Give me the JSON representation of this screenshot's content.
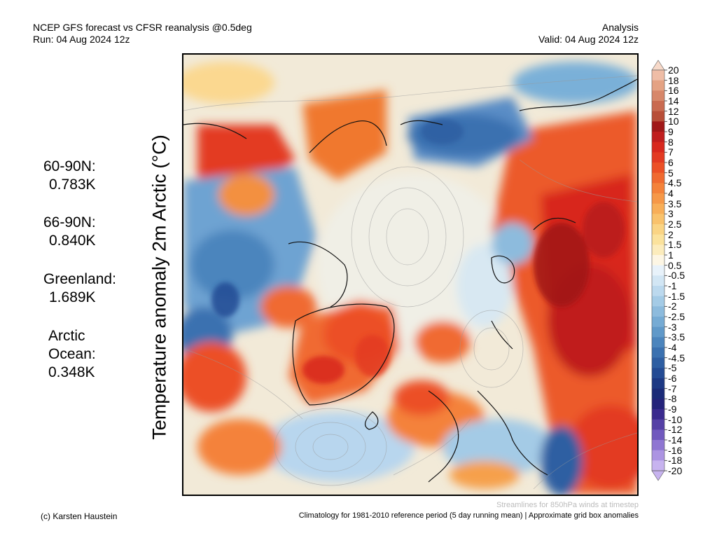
{
  "header": {
    "title": "NCEP GFS forecast vs CFSR reanalysis @0.5deg",
    "run": "Run: 04 Aug 2024 12z",
    "mode": "Analysis",
    "valid": "Valid: 04 Aug 2024 12z"
  },
  "stats": [
    {
      "label": "60-90N:",
      "value": "0.783K"
    },
    {
      "label": "66-90N:",
      "value": "0.840K"
    },
    {
      "label": "Greenland:",
      "value": "1.689K"
    },
    {
      "label": "Arctic Ocean:",
      "value": "0.348K"
    }
  ],
  "map": {
    "ylabel": "Temperature anomaly 2m Arctic (°C)",
    "streamlines_note": "Streamlines for 850hPa winds at timestep"
  },
  "colorbar": {
    "labels": [
      "20",
      "18",
      "16",
      "14",
      "12",
      "10",
      "9",
      "8",
      "7",
      "6",
      "5",
      "4.5",
      "4",
      "3.5",
      "3",
      "2.5",
      "2",
      "1.5",
      "1",
      "0.5",
      "-0.5",
      "-1",
      "-1.5",
      "-2",
      "-2.5",
      "-3",
      "-3.5",
      "-4",
      "-4.5",
      "-5",
      "-6",
      "-7",
      "-8",
      "-9",
      "-10",
      "-12",
      "-14",
      "-16",
      "-18",
      "-20"
    ],
    "colors": [
      "#f7d9c9",
      "#efbda6",
      "#e4a283",
      "#d7876a",
      "#c96a50",
      "#b84e38",
      "#a01818",
      "#c01e1e",
      "#d8281e",
      "#e33a22",
      "#ec5026",
      "#f06a30",
      "#f4823a",
      "#f69848",
      "#f8ae58",
      "#f9c26c",
      "#fad484",
      "#fbe29c",
      "#fcecbc",
      "#fdf6e4",
      "#e8f2fa",
      "#d2e6f4",
      "#bcd9ee",
      "#a4cbe6",
      "#8dbbdd",
      "#76abd4",
      "#6099c9",
      "#4c85bd",
      "#3b71b0",
      "#2e5ea2",
      "#244b94",
      "#1d3984",
      "#1b2b78",
      "#24237a",
      "#3a2a8e",
      "#5540a6",
      "#7159be",
      "#8f76d2",
      "#ac94e2",
      "#c7b3ef"
    ],
    "tip_top_color": "#f7d9c9",
    "tip_bottom_color": "#c7b3ef"
  },
  "footer": {
    "credit": "(c) Karsten Haustein",
    "climatology": "Climatology for 1981-2010 reference period (5 day running mean) | Approximate grid box anomalies"
  }
}
